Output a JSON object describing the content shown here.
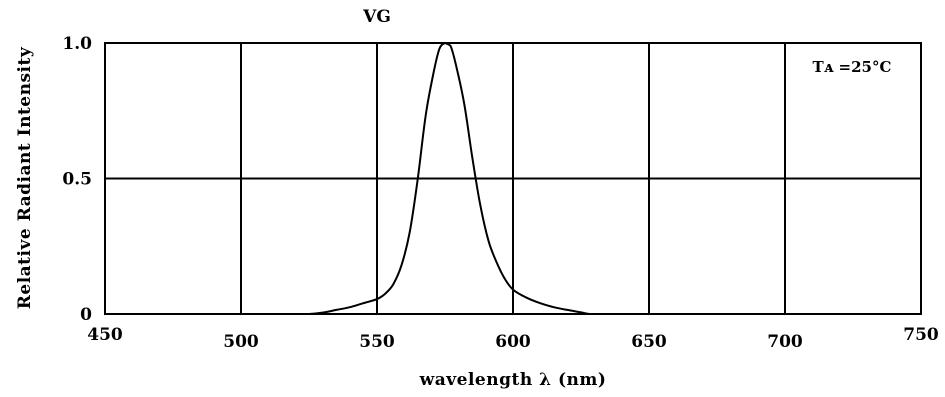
{
  "chart_data": {
    "type": "line",
    "title": "VG",
    "xlabel": "wavelength λ (nm)",
    "ylabel": "Relative Radiant Intensity",
    "annotation": "Tᴀ =25°C",
    "xlim": [
      450,
      750
    ],
    "ylim": [
      0,
      1.0
    ],
    "x_ticks": [
      "450",
      "500",
      "550",
      "600",
      "650",
      "700",
      "750"
    ],
    "y_ticks": [
      "0",
      "0.5",
      "1.0"
    ],
    "grid": true,
    "series": [
      {
        "x": [
          525,
          530,
          535,
          540,
          545,
          550,
          553,
          556,
          559,
          562,
          565,
          568,
          571,
          573,
          575,
          577,
          579,
          582,
          585,
          588,
          591,
          594,
          597,
          600,
          605,
          610,
          615,
          620,
          625,
          628
        ],
        "y": [
          0.0,
          0.005,
          0.015,
          0.025,
          0.04,
          0.055,
          0.075,
          0.11,
          0.18,
          0.3,
          0.5,
          0.74,
          0.9,
          0.98,
          1.0,
          0.99,
          0.92,
          0.78,
          0.58,
          0.4,
          0.27,
          0.19,
          0.13,
          0.09,
          0.06,
          0.04,
          0.025,
          0.015,
          0.006,
          0.0
        ]
      }
    ],
    "colors": {
      "line": "#000000",
      "grid": "#000000",
      "background": "#ffffff"
    }
  }
}
